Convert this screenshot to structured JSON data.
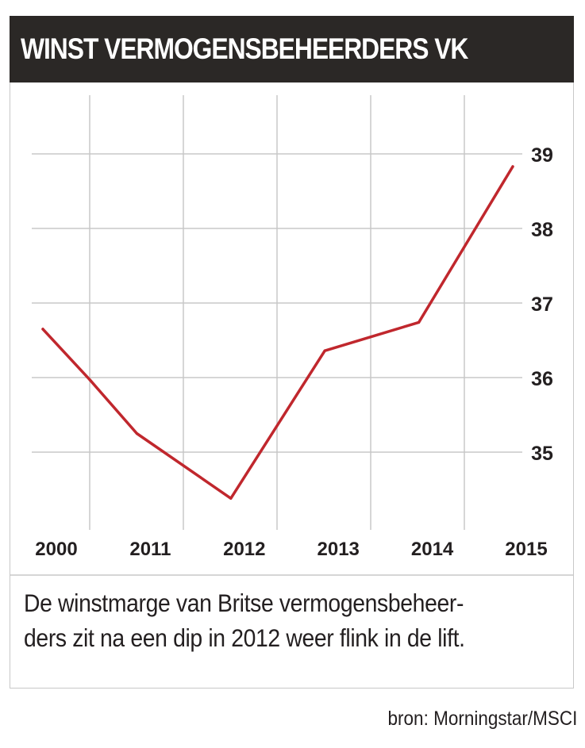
{
  "header": {
    "title": "WINST VERMOGENSBEHEERDERS VK"
  },
  "chart_data": {
    "type": "line",
    "title": "WINST VERMOGENSBEHEERDERS VK",
    "xlabel": "",
    "ylabel": "",
    "x_tick_labels": [
      "2000",
      "2011",
      "2012",
      "2013",
      "2014",
      "2015"
    ],
    "y_ticks": [
      35,
      36,
      37,
      38,
      39
    ],
    "ylim": [
      34.0,
      39.7
    ],
    "grid": true,
    "y_axis_position": "right",
    "series": [
      {
        "color": "#c0272d",
        "points": [
          {
            "x": 0.0,
            "y": 36.65
          },
          {
            "x": 0.5,
            "y": 35.97
          },
          {
            "x": 1.0,
            "y": 35.25
          },
          {
            "x": 2.0,
            "y": 34.38
          },
          {
            "x": 3.0,
            "y": 36.36
          },
          {
            "x": 4.0,
            "y": 36.74
          },
          {
            "x": 5.0,
            "y": 38.83
          }
        ]
      }
    ]
  },
  "caption": {
    "line1": "De winstmarge van Britse vermogensbeheer-",
    "line2": "ders zit na een dip in 2012 weer flink in de lift."
  },
  "source": {
    "text": "bron: Morningstar/MSCI"
  },
  "colors": {
    "title_bg": "#2b2826",
    "line": "#c0272d",
    "grid": "#c8c8c8",
    "text": "#231f20"
  }
}
